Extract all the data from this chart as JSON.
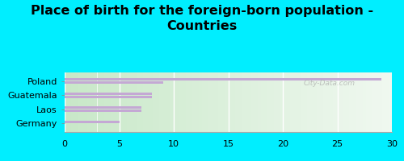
{
  "title": "Place of birth for the foreign-born population -\nCountries",
  "categories": [
    "Poland",
    "Guatemala",
    "Laos",
    "Germany"
  ],
  "bars": [
    [
      29,
      9
    ],
    [
      8,
      8
    ],
    [
      7,
      7
    ],
    [
      5,
      null
    ]
  ],
  "bar_color": "#c4a8d4",
  "xlim": [
    0,
    30
  ],
  "xticks": [
    0,
    5,
    10,
    15,
    20,
    25,
    30
  ],
  "bg_outer": "#00eeff",
  "bg_chart_left": "#c8e8c8",
  "bg_chart_right": "#f0f8f0",
  "watermark": "City-Data.com",
  "title_fontsize": 11.5,
  "bar_height": 0.18,
  "bar_gap": 0.22,
  "label_fontsize": 8,
  "tick_fontsize": 8
}
